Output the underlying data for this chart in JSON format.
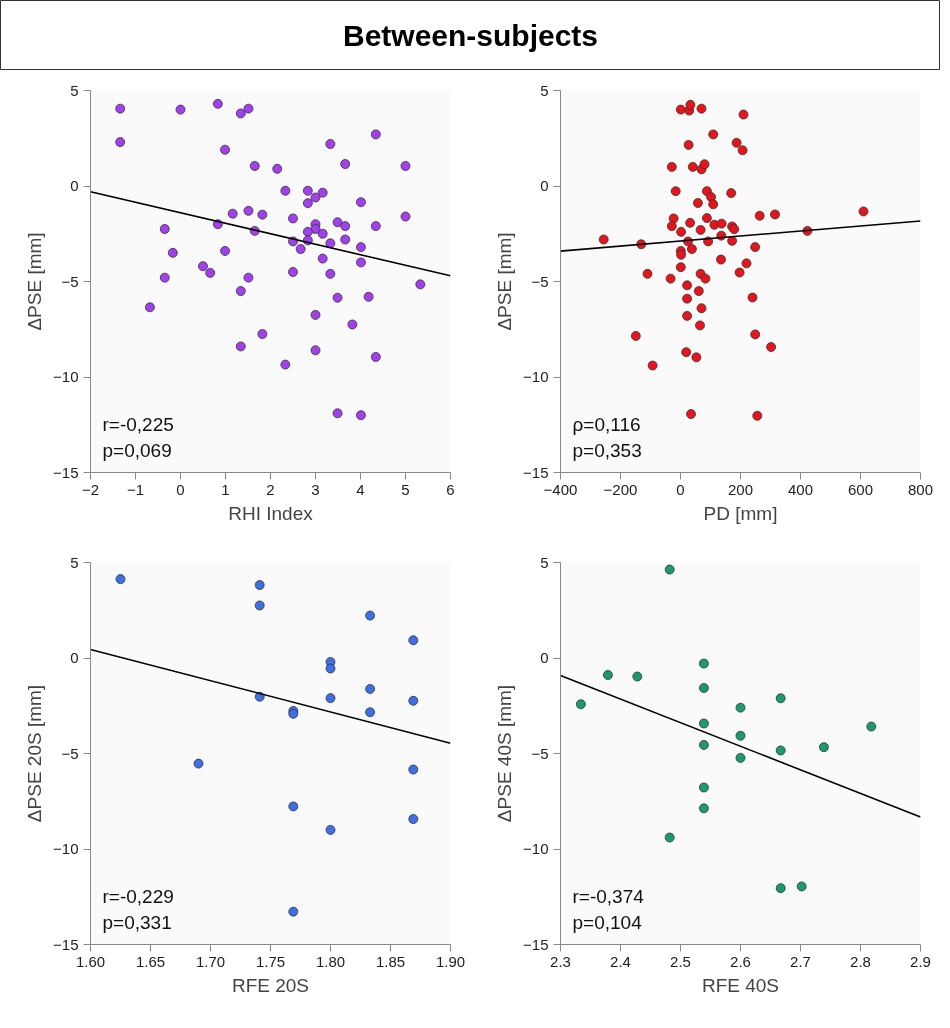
{
  "chart_data": [
    {
      "type": "other",
      "title": "Between-subjects"
    },
    {
      "type": "scatter",
      "xlabel": "RHI Index",
      "ylabel": "ΔPSE [mm]",
      "xlim": [
        -2,
        6
      ],
      "ylim": [
        -15,
        5
      ],
      "xticks": [
        -2,
        -1,
        0,
        1,
        2,
        3,
        4,
        5,
        6
      ],
      "yticks": [
        -15,
        -10,
        -5,
        0,
        5
      ],
      "grid": false,
      "annotations": [
        "r=-0,225",
        "p=0,069"
      ],
      "series": [
        {
          "type": "scatter",
          "marker": "circle",
          "color": "#a43ff0",
          "x": [
            -1.34,
            -1.34,
            0.0,
            0.83,
            1.34,
            1.51,
            0.99,
            1.65,
            2.15,
            3.33,
            4.34,
            3.66,
            5.0,
            2.33,
            2.83,
            3.16,
            3.0,
            2.83,
            4.01,
            5.0,
            1.16,
            1.51,
            1.82,
            0.83,
            1.65,
            2.5,
            3.0,
            3.0,
            2.83,
            3.49,
            3.66,
            4.34,
            3.16,
            2.5,
            2.83,
            3.66,
            3.33,
            2.67,
            4.01,
            -0.35,
            -0.17,
            0.99,
            3.16,
            4.01,
            0.5,
            0.66,
            -0.35,
            1.51,
            2.5,
            3.33,
            1.34,
            5.33,
            3.49,
            4.18,
            -0.68,
            3.0,
            3.82,
            1.82,
            1.34,
            3.0,
            4.34,
            2.33,
            3.49,
            4.01
          ],
          "values": [
            4.05,
            2.3,
            4.0,
            4.3,
            3.8,
            4.05,
            1.9,
            1.05,
            0.9,
            2.2,
            2.7,
            1.15,
            1.05,
            -0.25,
            -0.25,
            -0.35,
            -0.6,
            -0.9,
            -0.85,
            -1.6,
            -1.45,
            -1.3,
            -1.5,
            -2.0,
            -2.35,
            -1.7,
            -2.0,
            -2.25,
            -2.4,
            -1.9,
            -2.1,
            -2.1,
            -2.5,
            -2.9,
            -2.85,
            -2.8,
            -3.0,
            -3.3,
            -3.2,
            -2.25,
            -3.5,
            -3.4,
            -3.8,
            -4.0,
            -4.2,
            -4.55,
            -4.8,
            -4.8,
            -4.5,
            -4.6,
            -5.5,
            -5.15,
            -5.85,
            -5.8,
            -6.35,
            -6.75,
            -7.25,
            -7.75,
            -8.4,
            -8.6,
            -8.95,
            -9.35,
            -11.9,
            -12.0
          ]
        },
        {
          "type": "line",
          "color": "#000000",
          "x": [
            -2,
            6
          ],
          "values": [
            -0.3,
            -4.7
          ]
        }
      ]
    },
    {
      "type": "scatter",
      "xlabel": "PD [mm]",
      "ylabel": "ΔPSE [mm]",
      "xlim": [
        -400,
        800
      ],
      "ylim": [
        -15,
        5
      ],
      "xticks": [
        -400,
        -200,
        0,
        200,
        400,
        600,
        800
      ],
      "yticks": [
        -15,
        -10,
        -5,
        0,
        5
      ],
      "grid": false,
      "annotations": [
        "ρ=0,116",
        "p=0,353"
      ],
      "series": [
        {
          "type": "scatter",
          "marker": "circle",
          "color": "#e8141c",
          "x": [
            -256,
            -131,
            -110,
            -149,
            -93,
            -33,
            -29,
            -16,
            -23,
            -29,
            1,
            29,
            33,
            70,
            27,
            41,
            70,
            80,
            109,
            88,
            102,
            109,
            58,
            2,
            32,
            67,
            88,
            113,
            137,
            136,
            92,
            25,
            38,
            1,
            2,
            1,
            135,
            67,
            83,
            22,
            22,
            61,
            70,
            22,
            65,
            19,
            53,
            35,
            169,
            172,
            179,
            172,
            187,
            207,
            210,
            197,
            220,
            249,
            264,
            315,
            240,
            249,
            302,
            256,
            423,
            610
          ],
          "values": [
            -2.8,
            -3.05,
            -4.6,
            -7.85,
            -9.4,
            -4.85,
            1.0,
            -0.27,
            -1.7,
            -2.1,
            4.0,
            3.95,
            4.25,
            4.05,
            2.15,
            1.0,
            0.87,
            1.14,
            2.7,
            -0.27,
            -0.58,
            -0.96,
            -0.89,
            -2.4,
            -1.93,
            -2.3,
            -1.68,
            -2.03,
            -1.97,
            -2.6,
            -2.9,
            -2.9,
            -3.3,
            -3.4,
            -3.6,
            -4.25,
            -3.85,
            -4.6,
            -4.85,
            -5.2,
            -5.9,
            -5.5,
            -6.4,
            -6.8,
            -7.3,
            -8.7,
            -8.97,
            -11.94,
            -0.37,
            -2.12,
            -2.26,
            -2.87,
            2.26,
            1.87,
            3.74,
            -4.53,
            -4.05,
            -3.2,
            -1.56,
            -1.49,
            -5.84,
            -7.77,
            -8.43,
            -12.03,
            -2.35,
            -1.33
          ]
        },
        {
          "type": "line",
          "color": "#000000",
          "x": [
            -400,
            800
          ],
          "values": [
            -3.41,
            -1.83
          ]
        }
      ]
    },
    {
      "type": "scatter",
      "xlabel": "RFE 20S",
      "ylabel": "ΔPSE 20S [mm]",
      "xlim": [
        1.6,
        1.9
      ],
      "ylim": [
        -15,
        5
      ],
      "xticks": [
        {
          "value": 1.6,
          "label": "1.60"
        },
        {
          "value": 1.65,
          "label": "1.65"
        },
        {
          "value": 1.7,
          "label": "1.70"
        },
        {
          "value": 1.75,
          "label": "1.75"
        },
        {
          "value": 1.8,
          "label": "1.80"
        },
        {
          "value": 1.85,
          "label": "1.85"
        },
        {
          "value": 1.9,
          "label": "1.90"
        }
      ],
      "yticks": [
        -15,
        -10,
        -5,
        0,
        5
      ],
      "grid": false,
      "annotations": [
        "r=-0,229",
        "p=0,331"
      ],
      "series": [
        {
          "type": "scatter",
          "marker": "circle",
          "color": "#3d6fe6",
          "x": [
            1.625,
            1.741,
            1.741,
            1.833,
            1.869,
            1.8,
            1.8,
            1.741,
            1.769,
            1.769,
            1.8,
            1.833,
            1.833,
            1.869,
            1.69,
            1.869,
            1.769,
            1.869,
            1.8,
            1.769
          ],
          "values": [
            4.13,
            3.82,
            2.75,
            2.22,
            0.93,
            -0.21,
            -0.55,
            -2.03,
            -2.77,
            -2.92,
            -2.1,
            -1.62,
            -2.84,
            -2.24,
            -5.53,
            -5.84,
            -7.77,
            -8.43,
            -9.0,
            -13.28
          ]
        },
        {
          "type": "line",
          "color": "#000000",
          "x": [
            1.6,
            1.9
          ],
          "values": [
            0.45,
            -4.46
          ]
        }
      ]
    },
    {
      "type": "scatter",
      "xlabel": "RFE 40S",
      "ylabel": "ΔPSE 40S [mm]",
      "xlim": [
        2.3,
        2.9
      ],
      "ylim": [
        -15,
        5
      ],
      "xticks": [
        2.3,
        2.4,
        2.5,
        2.6,
        2.7,
        2.8,
        2.9
      ],
      "yticks": [
        -15,
        -10,
        -5,
        0,
        5
      ],
      "grid": false,
      "annotations": [
        "r=-0,374",
        "p=0,104"
      ],
      "series": [
        {
          "type": "scatter",
          "marker": "circle",
          "color": "#1a9a6e",
          "x": [
            2.482,
            2.334,
            2.379,
            2.428,
            2.539,
            2.539,
            2.539,
            2.539,
            2.539,
            2.539,
            2.482,
            2.6,
            2.6,
            2.6,
            2.667,
            2.667,
            2.739,
            2.818,
            2.667,
            2.702
          ],
          "values": [
            4.63,
            -2.42,
            -0.89,
            -0.97,
            -0.29,
            -1.57,
            -3.43,
            -4.55,
            -6.78,
            -7.87,
            -9.4,
            -2.6,
            -4.07,
            -5.23,
            -2.11,
            -4.84,
            -4.67,
            -3.59,
            -12.05,
            -11.96
          ]
        },
        {
          "type": "line",
          "color": "#000000",
          "x": [
            2.3,
            2.9
          ],
          "values": [
            -0.91,
            -8.33
          ]
        }
      ]
    }
  ]
}
